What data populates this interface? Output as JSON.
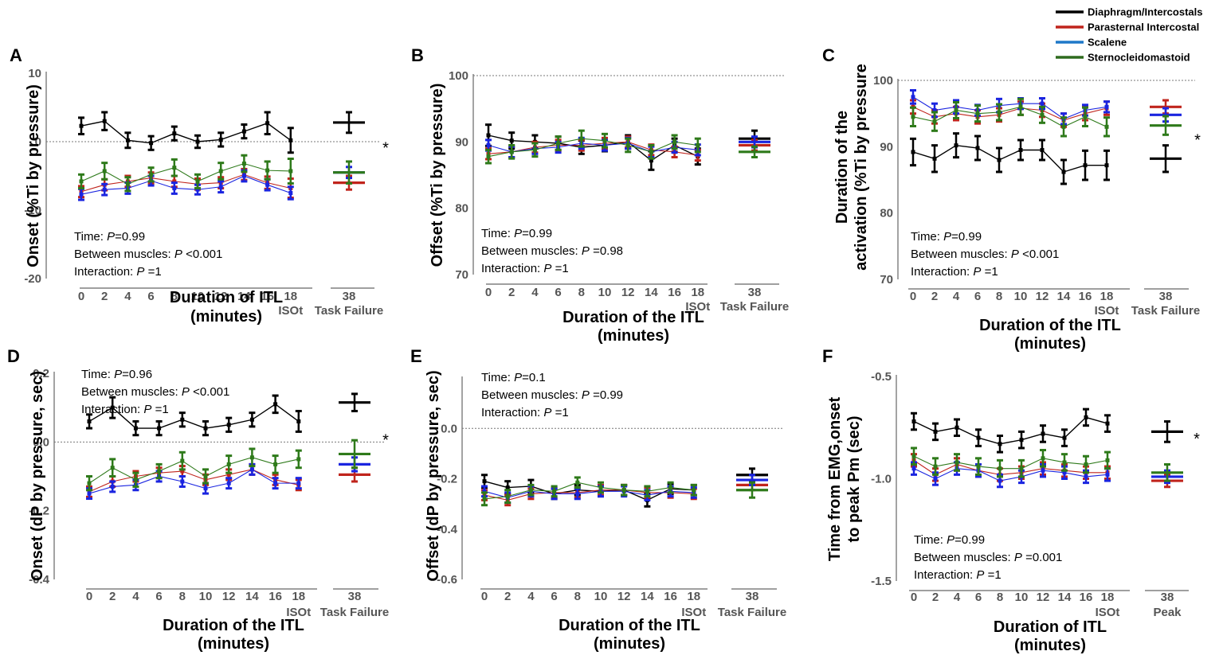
{
  "legend": [
    {
      "name": "Diaphragm/Intercostals",
      "color": "#000000"
    },
    {
      "name": "Parasternal Intercostal",
      "color": "#c0241c"
    },
    {
      "name": "Scalene",
      "color": "#1f78c8"
    },
    {
      "name": "Sternocleidomastoid",
      "color": "#2e6b1e"
    }
  ],
  "colors": {
    "diaphragm": "#000000",
    "parasternal": "#c0241c",
    "scalene": "#1a24e0",
    "scm": "#2e7a1a"
  },
  "chart_data": [
    {
      "panel": "A",
      "type": "line",
      "ylabel": "Onset (%Ti by pressure)",
      "xlabel": [
        "Duration of ITL",
        "(minutes)"
      ],
      "ylim": [
        -20,
        10
      ],
      "yticks": [
        "10",
        "0",
        "-10",
        "-20"
      ],
      "ref_line": 0,
      "x": [
        "0",
        "2",
        "4",
        "6",
        "8",
        "10",
        "12",
        "14",
        "16",
        "18"
      ],
      "x_special": "ISOt",
      "end_x": "38",
      "end_label": "Task Failure",
      "stats": [
        {
          "label": "Time: ",
          "p": "P",
          "val": "=0.99"
        },
        {
          "label": "Between muscles: ",
          "p": "P",
          "val": " <0.001"
        },
        {
          "label": "Interaction: ",
          "p": "P",
          "val": " =1"
        }
      ],
      "stats_pos": "bottom-left",
      "significance": "*",
      "series": [
        {
          "name": "Diaphragm/Intercostals",
          "values": [
            2.3,
            3.0,
            0.2,
            -0.2,
            1.2,
            0.0,
            0.3,
            1.5,
            2.7,
            0.2
          ],
          "err": [
            1.2,
            1.3,
            1.1,
            1.0,
            1.0,
            0.9,
            1.0,
            1.0,
            1.6,
            1.8
          ],
          "end": 2.8,
          "end_err": 1.5
        },
        {
          "name": "Parasternal Intercostal",
          "values": [
            -7.3,
            -6.3,
            -5.8,
            -5.3,
            -5.8,
            -6.2,
            -6.0,
            -4.8,
            -6.0,
            -6.8
          ],
          "err": [
            0.8,
            0.8,
            0.8,
            0.8,
            0.8,
            0.8,
            0.8,
            0.8,
            0.9,
            1.4
          ],
          "end": -6.0,
          "end_err": 1.0
        },
        {
          "name": "Scalene",
          "values": [
            -7.7,
            -7.0,
            -6.8,
            -5.7,
            -6.8,
            -7.0,
            -6.6,
            -5.0,
            -6.3,
            -7.5
          ],
          "err": [
            0.8,
            0.8,
            0.8,
            0.7,
            0.8,
            0.7,
            0.8,
            0.8,
            0.8,
            0.9
          ],
          "end": -4.5,
          "end_err": 0.8
        },
        {
          "name": "Sternocleidomastoid",
          "values": [
            -5.8,
            -4.3,
            -6.2,
            -4.8,
            -3.8,
            -5.8,
            -4.3,
            -3.2,
            -4.2,
            -4.3
          ],
          "err": [
            1.0,
            1.2,
            1.0,
            1.0,
            1.2,
            1.0,
            1.2,
            1.2,
            1.3,
            1.8
          ],
          "end": -4.5,
          "end_err": 1.6
        }
      ]
    },
    {
      "panel": "B",
      "type": "line",
      "ylabel": "Offset (%Ti by pressure)",
      "xlabel": [
        "Duration of the ITL",
        "(minutes)"
      ],
      "ylim": [
        70,
        100
      ],
      "yticks": [
        "100",
        "90",
        "80",
        "70"
      ],
      "ref_line": 100,
      "x": [
        "0",
        "2",
        "4",
        "6",
        "8",
        "10",
        "12",
        "14",
        "16",
        "18"
      ],
      "x_special": "ISOt",
      "end_x": "38",
      "end_label": "Task Failure",
      "stats": [
        {
          "label": "Time: ",
          "p": "P",
          "val": "=0.99"
        },
        {
          "label": "Between muscles: ",
          "p": "P",
          "val": " =0.98"
        },
        {
          "label": "Interaction: ",
          "p": "P",
          "val": " =1"
        }
      ],
      "stats_pos": "bottom-left",
      "significance": "",
      "series": [
        {
          "name": "Diaphragm/Intercostals",
          "values": [
            91.0,
            90.2,
            90.0,
            89.8,
            89.2,
            89.5,
            90.0,
            87.2,
            89.5,
            87.8
          ],
          "err": [
            1.6,
            1.2,
            1.0,
            1.0,
            1.0,
            0.9,
            1.0,
            1.4,
            1.0,
            1.2
          ],
          "end": 90.5,
          "end_err": 1.2
        },
        {
          "name": "Parasternal Intercostal",
          "values": [
            88.2,
            88.5,
            89.2,
            89.5,
            89.5,
            89.8,
            90.0,
            88.8,
            88.5,
            88.0
          ],
          "err": [
            0.8,
            0.8,
            0.8,
            0.8,
            0.8,
            0.8,
            0.8,
            0.8,
            0.8,
            0.8
          ],
          "end": 89.5,
          "end_err": 0.8
        },
        {
          "name": "Scalene",
          "values": [
            89.5,
            88.5,
            89.0,
            89.2,
            89.8,
            89.5,
            89.8,
            88.5,
            89.2,
            88.8
          ],
          "err": [
            0.8,
            0.8,
            0.8,
            0.8,
            0.8,
            0.8,
            0.8,
            0.8,
            0.8,
            0.8
          ],
          "end": 90.0,
          "end_err": 0.8
        },
        {
          "name": "Sternocleidomastoid",
          "values": [
            87.8,
            88.5,
            88.8,
            89.8,
            90.5,
            90.2,
            89.5,
            88.5,
            90.0,
            89.5
          ],
          "err": [
            1.0,
            1.0,
            1.0,
            1.0,
            1.2,
            1.0,
            1.0,
            1.0,
            1.0,
            1.0
          ],
          "end": 88.5,
          "end_err": 0.8
        }
      ]
    },
    {
      "panel": "C",
      "type": "line",
      "ylabel": [
        "Duration of the",
        "activation (%Ti by pressure"
      ],
      "xlabel": [
        "Duration of the ITL",
        "(minutes)"
      ],
      "ylim": [
        70,
        100
      ],
      "yticks": [
        "100",
        "90",
        "80",
        "70"
      ],
      "ref_line": 100,
      "x": [
        "0",
        "2",
        "4",
        "6",
        "8",
        "10",
        "12",
        "14",
        "16",
        "18"
      ],
      "x_special": "ISOt",
      "end_x": "38",
      "end_label": "Task Failure",
      "stats": [
        {
          "label": "Time: ",
          "p": "P",
          "val": "=0.99"
        },
        {
          "label": "Between muscles: ",
          "p": "P",
          "val": " <0.001"
        },
        {
          "label": "Interaction: ",
          "p": "P",
          "val": " =1"
        }
      ],
      "stats_pos": "bottom-left",
      "significance": "*",
      "series": [
        {
          "name": "Diaphragm/Intercostals",
          "values": [
            89.2,
            88.2,
            90.2,
            89.8,
            88.0,
            89.5,
            89.5,
            86.2,
            87.2,
            87.2
          ],
          "err": [
            2.0,
            2.0,
            1.8,
            1.8,
            1.8,
            1.5,
            1.5,
            1.8,
            2.2,
            2.2
          ],
          "end": 88.2,
          "end_err": 2.0
        },
        {
          "name": "Parasternal Intercostal",
          "values": [
            96.0,
            94.5,
            95.0,
            94.5,
            94.8,
            95.8,
            95.5,
            94.0,
            95.0,
            95.8
          ],
          "err": [
            1.0,
            1.0,
            1.0,
            1.0,
            1.0,
            1.0,
            1.0,
            1.0,
            1.0,
            1.0
          ],
          "end": 96.0,
          "end_err": 1.0
        },
        {
          "name": "Scalene",
          "values": [
            97.5,
            95.5,
            96.0,
            95.5,
            96.2,
            96.5,
            96.5,
            94.2,
            95.5,
            96.0
          ],
          "err": [
            1.0,
            1.0,
            1.0,
            0.8,
            1.0,
            0.8,
            0.8,
            0.8,
            0.8,
            0.8
          ],
          "end": 94.8,
          "end_err": 1.0
        },
        {
          "name": "Sternocleidomastoid",
          "values": [
            94.5,
            93.8,
            95.5,
            95.0,
            95.2,
            96.0,
            94.8,
            93.0,
            94.5,
            93.0
          ],
          "err": [
            1.4,
            1.4,
            1.2,
            1.2,
            1.2,
            1.2,
            1.2,
            1.4,
            1.4,
            1.4
          ],
          "end": 93.2,
          "end_err": 1.4
        }
      ]
    },
    {
      "panel": "D",
      "type": "line",
      "ylabel": "Onset (dP by pressure, sec)",
      "xlabel": [
        "Duration of the ITL",
        "(minutes)"
      ],
      "ylim": [
        -0.4,
        0.2
      ],
      "yticks": [
        "0.2",
        "0.0",
        "-0.2",
        "-0.4"
      ],
      "ref_line": 0,
      "x": [
        "0",
        "2",
        "4",
        "6",
        "8",
        "10",
        "12",
        "14",
        "16",
        "18"
      ],
      "x_special": "ISOt",
      "end_x": "38",
      "end_label": "Task Failure",
      "stats": [
        {
          "label": "Time: ",
          "p": "P",
          "val": "=0.96"
        },
        {
          "label": "Between muscles: ",
          "p": "P",
          "val": " <0.001"
        },
        {
          "label": "Interaction: ",
          "p": "P",
          "val": " =1"
        }
      ],
      "stats_pos": "top-left",
      "significance": "*",
      "series": [
        {
          "name": "Diaphragm/Intercostals",
          "values": [
            0.06,
            0.1,
            0.04,
            0.04,
            0.065,
            0.04,
            0.05,
            0.065,
            0.11,
            0.06
          ],
          "err": [
            0.02,
            0.03,
            0.02,
            0.02,
            0.02,
            0.02,
            0.02,
            0.02,
            0.025,
            0.03
          ],
          "end": 0.115,
          "end_err": 0.025
        },
        {
          "name": "Parasternal Intercostal",
          "values": [
            -0.145,
            -0.115,
            -0.1,
            -0.09,
            -0.085,
            -0.11,
            -0.095,
            -0.08,
            -0.11,
            -0.125
          ],
          "err": [
            0.015,
            0.015,
            0.015,
            0.015,
            0.015,
            0.015,
            0.015,
            0.015,
            0.015,
            0.015
          ],
          "end": -0.095,
          "end_err": 0.02
        },
        {
          "name": "Scalene",
          "values": [
            -0.15,
            -0.13,
            -0.125,
            -0.1,
            -0.115,
            -0.135,
            -0.12,
            -0.08,
            -0.12,
            -0.12
          ],
          "err": [
            0.015,
            0.015,
            0.015,
            0.015,
            0.015,
            0.015,
            0.015,
            0.015,
            0.015,
            0.015
          ],
          "end": -0.065,
          "end_err": 0.02
        },
        {
          "name": "Sternocleidomastoid",
          "values": [
            -0.12,
            -0.075,
            -0.11,
            -0.085,
            -0.055,
            -0.1,
            -0.065,
            -0.045,
            -0.065,
            -0.05
          ],
          "err": [
            0.02,
            0.025,
            0.02,
            0.02,
            0.025,
            0.02,
            0.025,
            0.025,
            0.025,
            0.025
          ],
          "end": -0.035,
          "end_err": 0.04
        }
      ]
    },
    {
      "panel": "E",
      "type": "line",
      "ylabel": "Offset (dP by pressure, sec)",
      "xlabel": [
        "Duration of the ITL",
        "(minutes)"
      ],
      "ylim": [
        -0.6,
        0.2
      ],
      "yticks": [
        "0.0",
        "-0.2",
        "-0.4",
        "-0.6"
      ],
      "ref_line": 0,
      "x": [
        "0",
        "2",
        "4",
        "6",
        "8",
        "10",
        "12",
        "14",
        "16",
        "18"
      ],
      "x_special": "ISOt",
      "end_x": "38",
      "end_label": "Task Failure",
      "stats": [
        {
          "label": "Time: ",
          "p": "P",
          "val": "=0.1"
        },
        {
          "label": "Between muscles: ",
          "p": "P",
          "val": " =0.99"
        },
        {
          "label": "Interaction: ",
          "p": "P",
          "val": " =1"
        }
      ],
      "stats_pos": "top-left",
      "significance": "",
      "series": [
        {
          "name": "Diaphragm/Intercostals",
          "values": [
            -0.21,
            -0.235,
            -0.23,
            -0.26,
            -0.245,
            -0.25,
            -0.245,
            -0.285,
            -0.24,
            -0.245
          ],
          "err": [
            0.025,
            0.025,
            0.025,
            0.02,
            0.02,
            0.02,
            0.02,
            0.025,
            0.02,
            0.02
          ],
          "end": -0.185,
          "end_err": 0.025
        },
        {
          "name": "Parasternal Intercostal",
          "values": [
            -0.265,
            -0.285,
            -0.26,
            -0.255,
            -0.255,
            -0.245,
            -0.245,
            -0.255,
            -0.255,
            -0.26
          ],
          "err": [
            0.02,
            0.02,
            0.02,
            0.02,
            0.02,
            0.02,
            0.02,
            0.02,
            0.02,
            0.02
          ],
          "end": -0.225,
          "end_err": 0.02
        },
        {
          "name": "Scalene",
          "values": [
            -0.25,
            -0.275,
            -0.25,
            -0.26,
            -0.26,
            -0.25,
            -0.25,
            -0.265,
            -0.25,
            -0.255
          ],
          "err": [
            0.02,
            0.02,
            0.02,
            0.02,
            0.02,
            0.02,
            0.02,
            0.02,
            0.02,
            0.02
          ],
          "end": -0.205,
          "end_err": 0.02
        },
        {
          "name": "Sternocleidomastoid",
          "values": [
            -0.28,
            -0.27,
            -0.245,
            -0.25,
            -0.215,
            -0.235,
            -0.245,
            -0.25,
            -0.235,
            -0.245
          ],
          "err": [
            0.025,
            0.025,
            0.02,
            0.02,
            0.02,
            0.02,
            0.02,
            0.02,
            0.02,
            0.02
          ],
          "end": -0.245,
          "end_err": 0.03
        }
      ]
    },
    {
      "panel": "F",
      "type": "line",
      "ylabel": [
        "Time from EMG,onset",
        "to peak Pm (sec)"
      ],
      "xlabel": [
        "Duration of ITL",
        "(minutes)"
      ],
      "ylim": [
        -1.5,
        -0.5
      ],
      "yticks": [
        "-0.5",
        "-1.0",
        "-1.5"
      ],
      "ref_line": null,
      "x": [
        "0",
        "2",
        "4",
        "6",
        "8",
        "10",
        "12",
        "14",
        "16",
        "18"
      ],
      "x_special": "ISOt",
      "end_x": "38",
      "end_label": "Peak",
      "stats": [
        {
          "label": "Time: ",
          "p": "P",
          "val": "=0.99"
        },
        {
          "label": "Between muscles: ",
          "p": "P",
          "val": " =0.001"
        },
        {
          "label": "Interaction: ",
          "p": "P",
          "val": " =1"
        }
      ],
      "stats_pos": "bottom-left",
      "significance": "*",
      "series": [
        {
          "name": "Diaphragm/Intercostals",
          "values": [
            -0.72,
            -0.77,
            -0.75,
            -0.8,
            -0.83,
            -0.81,
            -0.78,
            -0.8,
            -0.7,
            -0.73
          ],
          "err": [
            0.04,
            0.04,
            0.04,
            0.04,
            0.04,
            0.04,
            0.04,
            0.04,
            0.04,
            0.04
          ],
          "end": -0.77,
          "end_err": 0.05
        },
        {
          "name": "Parasternal Intercostal",
          "values": [
            -0.91,
            -0.98,
            -0.93,
            -0.96,
            -0.98,
            -0.97,
            -0.95,
            -0.96,
            -0.97,
            -0.97
          ],
          "err": [
            0.03,
            0.03,
            0.03,
            0.03,
            0.03,
            0.03,
            0.03,
            0.03,
            0.03,
            0.03
          ],
          "end": -1.01,
          "end_err": 0.03
        },
        {
          "name": "Scalene",
          "values": [
            -0.95,
            -1.0,
            -0.95,
            -0.96,
            -1.01,
            -0.99,
            -0.96,
            -0.97,
            -0.99,
            -0.98
          ],
          "err": [
            0.03,
            0.03,
            0.03,
            0.03,
            0.03,
            0.03,
            0.03,
            0.03,
            0.03,
            0.03
          ],
          "end": -0.99,
          "end_err": 0.03
        },
        {
          "name": "Sternocleidomastoid",
          "values": [
            -0.89,
            -0.94,
            -0.92,
            -0.94,
            -0.95,
            -0.95,
            -0.9,
            -0.92,
            -0.93,
            -0.91
          ],
          "err": [
            0.04,
            0.04,
            0.04,
            0.04,
            0.04,
            0.04,
            0.04,
            0.04,
            0.04,
            0.04
          ],
          "end": -0.97,
          "end_err": 0.04
        }
      ]
    }
  ]
}
